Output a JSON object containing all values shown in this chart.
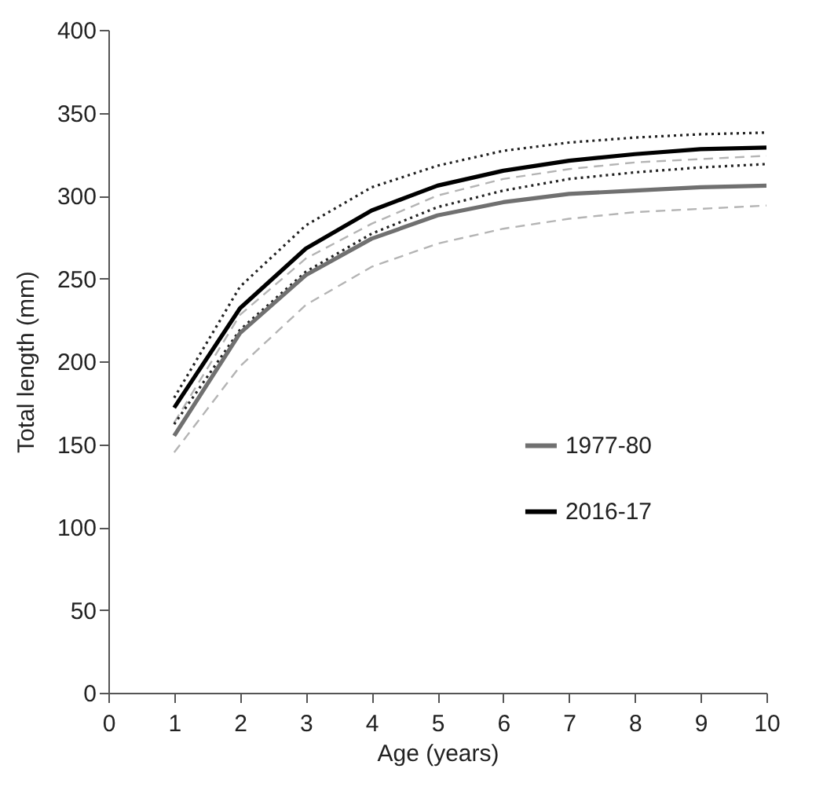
{
  "chart_data": {
    "type": "line",
    "xlabel": "Age (years)",
    "ylabel": "Total length (mm)",
    "x": [
      1,
      2,
      3,
      4,
      5,
      6,
      7,
      8,
      9,
      10
    ],
    "series": [
      {
        "color": "#b4b4b4",
        "line_style": "dashed",
        "values": [
          145,
          197,
          234,
          257,
          271,
          280,
          286,
          290,
          292,
          294
        ]
      },
      {
        "color": "#b4b4b4",
        "line_style": "dashed",
        "values": [
          163,
          228,
          262,
          283,
          300,
          310,
          316,
          320,
          322,
          324
        ]
      },
      {
        "color": "#222222",
        "line_style": "dotted",
        "values": [
          162,
          219,
          254,
          277,
          293,
          303,
          310,
          314,
          317,
          319
        ]
      },
      {
        "color": "#222222",
        "line_style": "dotted",
        "values": [
          178,
          245,
          282,
          305,
          318,
          327,
          332,
          335,
          337,
          338
        ]
      },
      {
        "name": "1977-80",
        "color": "#707070",
        "line_style": "solid",
        "values": [
          155,
          217,
          252,
          274,
          288,
          296,
          301,
          303,
          305,
          306
        ]
      },
      {
        "name": "2016-17",
        "color": "#000000",
        "line_style": "solid",
        "values": [
          172,
          232,
          268,
          291,
          306,
          315,
          321,
          325,
          328,
          329
        ]
      }
    ],
    "xlim": [
      0,
      10
    ],
    "xticks": [
      0,
      1,
      2,
      3,
      4,
      5,
      6,
      7,
      8,
      9,
      10
    ],
    "ylim": [
      0,
      400
    ],
    "yticks": [
      0,
      50,
      100,
      150,
      200,
      250,
      300,
      350,
      400
    ],
    "grid": false,
    "legend": "right",
    "marker": "none"
  }
}
